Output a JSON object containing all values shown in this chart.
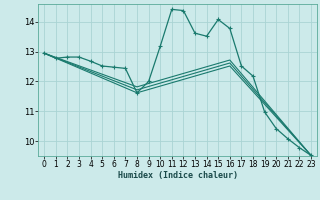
{
  "xlabel": "Humidex (Indice chaleur)",
  "bg_color": "#cceaea",
  "line_color": "#1a7a6e",
  "grid_color": "#aad4d4",
  "xlim": [
    -0.5,
    23.5
  ],
  "ylim": [
    9.5,
    14.6
  ],
  "yticks": [
    10,
    11,
    12,
    13,
    14
  ],
  "xticks": [
    0,
    1,
    2,
    3,
    4,
    5,
    6,
    7,
    8,
    9,
    10,
    11,
    12,
    13,
    14,
    15,
    16,
    17,
    18,
    19,
    20,
    21,
    22,
    23
  ],
  "main_series": {
    "x": [
      0,
      1,
      2,
      3,
      4,
      5,
      6,
      7,
      8,
      9,
      10,
      11,
      12,
      13,
      14,
      15,
      16,
      17,
      18,
      19,
      20,
      21,
      22,
      23
    ],
    "y": [
      12.95,
      12.78,
      12.82,
      12.82,
      12.68,
      12.52,
      12.48,
      12.44,
      11.62,
      12.0,
      13.18,
      14.42,
      14.38,
      13.62,
      13.52,
      14.08,
      13.78,
      12.52,
      12.18,
      10.98,
      10.42,
      10.08,
      9.78,
      9.52
    ]
  },
  "trend_lines": [
    {
      "x": [
        0,
        8,
        16,
        23
      ],
      "y": [
        12.95,
        11.62,
        12.52,
        9.52
      ]
    },
    {
      "x": [
        0,
        8,
        16,
        23
      ],
      "y": [
        12.95,
        11.72,
        12.62,
        9.52
      ]
    },
    {
      "x": [
        0,
        8,
        16,
        23
      ],
      "y": [
        12.95,
        11.82,
        12.72,
        9.52
      ]
    }
  ]
}
